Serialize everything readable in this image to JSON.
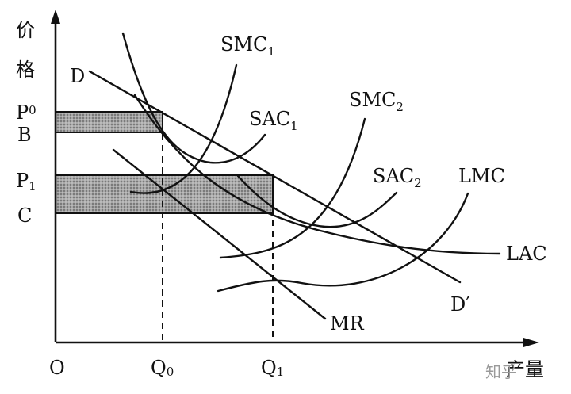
{
  "axes": {
    "y_label_chars": [
      "价",
      "格"
    ],
    "x_label": "产量",
    "origin": "O"
  },
  "x_ticks": [
    {
      "base": "Q",
      "sub": "0"
    },
    {
      "base": "Q",
      "sub": "1"
    }
  ],
  "y_ticks": [
    {
      "base": "P",
      "sub": "0"
    },
    {
      "base": "B",
      "sub": ""
    },
    {
      "base": "P",
      "sub": "1"
    },
    {
      "base": "C",
      "sub": ""
    }
  ],
  "curves": {
    "demand_start": "D",
    "demand_end": "D′",
    "mr": "MR",
    "smc1": {
      "base": "SMC",
      "sub": "1"
    },
    "sac1": {
      "base": "SAC",
      "sub": "1"
    },
    "smc2": {
      "base": "SMC",
      "sub": "2"
    },
    "sac2": {
      "base": "SAC",
      "sub": "2"
    },
    "lmc": "LMC",
    "lac": "LAC"
  },
  "watermark": "知乎"
}
